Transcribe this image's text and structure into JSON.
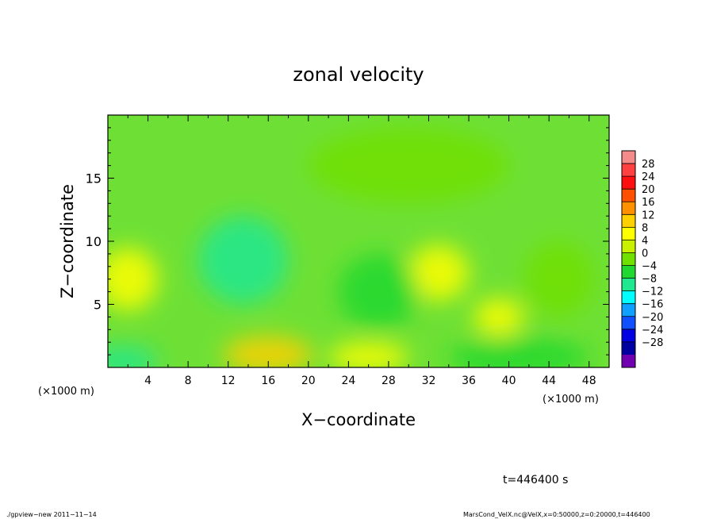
{
  "chart_data": {
    "type": "heatmap",
    "title": "zonal velocity",
    "xlabel": "X−coordinate",
    "ylabel": "Z−coordinate",
    "x_units_label": "(×1000 m)",
    "y_units_label": "(×1000 m)",
    "xlim": [
      0,
      50
    ],
    "ylim": [
      0,
      20
    ],
    "x_ticks": [
      4,
      8,
      12,
      16,
      20,
      24,
      28,
      32,
      36,
      40,
      44,
      48
    ],
    "y_ticks": [
      5,
      10,
      15
    ],
    "x_tick_labels": [
      "4",
      "8",
      "12",
      "16",
      "20",
      "24",
      "28",
      "32",
      "36",
      "40",
      "44",
      "48"
    ],
    "y_tick_labels": [
      "5",
      "10",
      "15"
    ],
    "colorbar": {
      "levels": [
        -28,
        -24,
        -20,
        -16,
        -12,
        -8,
        -4,
        0,
        4,
        8,
        12,
        16,
        20,
        24,
        28
      ],
      "labels": [
        "28",
        "24",
        "20",
        "16",
        "12",
        "8",
        "4",
        "0",
        "−4",
        "−8",
        "−12",
        "−16",
        "−20",
        "−24",
        "−28"
      ],
      "colors": [
        "#f48a8a",
        "#ff4040",
        "#ff1010",
        "#ff5000",
        "#ff9000",
        "#ffd000",
        "#ffff00",
        "#c8f000",
        "#70e000",
        "#20d830",
        "#20e890",
        "#00ffff",
        "#10a0ff",
        "#1050ff",
        "#0000e0",
        "#0000a0",
        "#7000b0"
      ]
    },
    "features": [
      {
        "x": 13.5,
        "z": 8.5,
        "value": -11,
        "rx": 4.5,
        "rz": 3.5
      },
      {
        "x": 1.5,
        "z": 0.5,
        "value": -11,
        "rx": 3.5,
        "rz": 1.2
      },
      {
        "x": 16,
        "z": 1,
        "value": 9,
        "rx": 4.5,
        "rz": 1.5
      },
      {
        "x": 2,
        "z": 7,
        "value": 7,
        "rx": 3,
        "rz": 2.5
      },
      {
        "x": 33,
        "z": 7.5,
        "value": 6,
        "rx": 3,
        "rz": 2.2
      },
      {
        "x": 39,
        "z": 4,
        "value": 7,
        "rx": 2.5,
        "rz": 1.5
      },
      {
        "x": 26,
        "z": 0.8,
        "value": 5,
        "rx": 4,
        "rz": 1.2
      },
      {
        "x": 41,
        "z": 0.8,
        "value": -6,
        "rx": 7,
        "rz": 1.5
      },
      {
        "x": 27,
        "z": 6,
        "value": -5,
        "rx": 4,
        "rz": 3
      },
      {
        "x": 45,
        "z": 7,
        "value": -4,
        "rx": 3.5,
        "rz": 3
      },
      {
        "x": 30,
        "z": 16,
        "value": -2,
        "rx": 10,
        "rz": 3
      }
    ]
  },
  "time_label": "t=446400 s",
  "footer": {
    "left": "./gpview−new   2011−11−14",
    "right": "MarsCond_VelX.nc@VelX,x=0:50000,z=0:20000,t=446400"
  }
}
